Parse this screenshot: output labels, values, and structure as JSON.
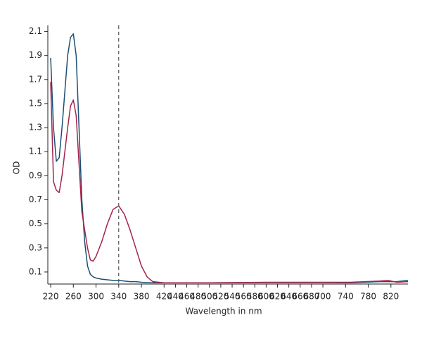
{
  "chart_data": {
    "type": "line",
    "x_label": "Wavelength in nm",
    "y_label": "OD",
    "x": [
      220,
      225,
      230,
      235,
      240,
      245,
      250,
      255,
      260,
      265,
      270,
      275,
      280,
      285,
      290,
      295,
      300,
      310,
      320,
      330,
      340,
      350,
      360,
      370,
      380,
      390,
      400,
      420,
      500,
      600,
      700,
      750,
      800,
      815,
      830,
      850
    ],
    "series": [
      {
        "color": "#1d4f72",
        "values": [
          1.88,
          1.3,
          1.02,
          1.05,
          1.3,
          1.6,
          1.9,
          2.05,
          2.08,
          1.9,
          1.3,
          0.7,
          0.35,
          0.15,
          0.08,
          0.06,
          0.05,
          0.04,
          0.035,
          0.03,
          0.03,
          0.025,
          0.02,
          0.02,
          0.015,
          0.012,
          0.01,
          0.01,
          0.01,
          0.012,
          0.012,
          0.01,
          0.02,
          0.02,
          0.02,
          0.03
        ]
      },
      {
        "color": "#a3244c",
        "values": [
          1.68,
          0.85,
          0.78,
          0.76,
          0.9,
          1.1,
          1.3,
          1.48,
          1.53,
          1.4,
          1.0,
          0.6,
          0.45,
          0.3,
          0.2,
          0.19,
          0.23,
          0.35,
          0.5,
          0.62,
          0.65,
          0.58,
          0.45,
          0.3,
          0.15,
          0.06,
          0.02,
          0.01,
          0.01,
          0.015,
          0.015,
          0.015,
          0.025,
          0.03,
          0.015,
          0.02
        ]
      }
    ],
    "vline": 340,
    "xlim": [
      215,
      850
    ],
    "xticks": [
      220,
      260,
      300,
      340,
      380,
      420,
      440,
      460,
      480,
      500,
      520,
      540,
      560,
      580,
      600,
      620,
      640,
      660,
      680,
      700,
      740,
      780,
      820
    ],
    "ylim": [
      0,
      2.15
    ],
    "yticks": [
      0.1,
      0.3,
      0.5,
      0.7,
      0.9,
      1.1,
      1.3,
      1.5,
      1.7,
      1.9,
      2.1
    ],
    "grid": false
  }
}
